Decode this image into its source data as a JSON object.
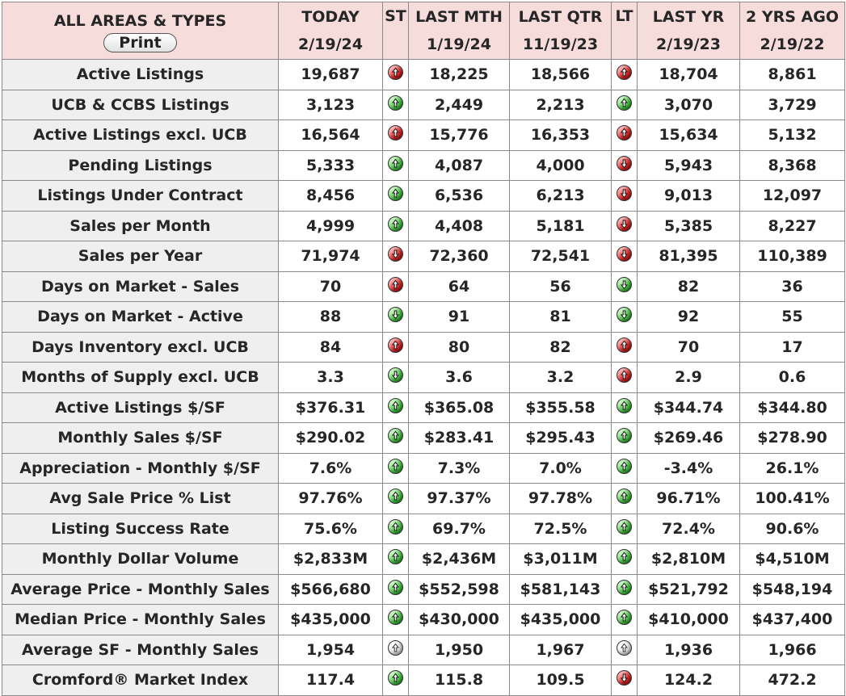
{
  "header": {
    "area_label": "ALL AREAS & TYPES",
    "print_label": "Print",
    "columns": [
      {
        "title": "TODAY",
        "date": "2/19/24"
      },
      {
        "title": "ST",
        "date": ""
      },
      {
        "title": "LAST MTH",
        "date": "1/19/24"
      },
      {
        "title": "LAST QTR",
        "date": "11/19/23"
      },
      {
        "title": "LT",
        "date": ""
      },
      {
        "title": "LAST YR",
        "date": "2/19/23"
      },
      {
        "title": "2 YRS AGO",
        "date": "2/19/22"
      }
    ]
  },
  "rows": [
    {
      "label": "Active Listings",
      "today": "19,687",
      "st": {
        "icon": "arrow-up-icon",
        "color": "red"
      },
      "last_mth": "18,225",
      "last_qtr": "18,566",
      "lt": {
        "icon": "arrow-up-icon",
        "color": "red"
      },
      "last_yr": "18,704",
      "two_yrs": "8,861"
    },
    {
      "label": "UCB & CCBS Listings",
      "today": "3,123",
      "st": {
        "icon": "arrow-up-icon",
        "color": "green"
      },
      "last_mth": "2,449",
      "last_qtr": "2,213",
      "lt": {
        "icon": "arrow-up-icon",
        "color": "green"
      },
      "last_yr": "3,070",
      "two_yrs": "3,729"
    },
    {
      "label": "Active Listings excl. UCB",
      "today": "16,564",
      "st": {
        "icon": "arrow-up-icon",
        "color": "red"
      },
      "last_mth": "15,776",
      "last_qtr": "16,353",
      "lt": {
        "icon": "arrow-up-icon",
        "color": "red"
      },
      "last_yr": "15,634",
      "two_yrs": "5,132"
    },
    {
      "label": "Pending Listings",
      "today": "5,333",
      "st": {
        "icon": "arrow-up-icon",
        "color": "green"
      },
      "last_mth": "4,087",
      "last_qtr": "4,000",
      "lt": {
        "icon": "arrow-down-icon",
        "color": "red"
      },
      "last_yr": "5,943",
      "two_yrs": "8,368"
    },
    {
      "label": "Listings Under Contract",
      "today": "8,456",
      "st": {
        "icon": "arrow-up-icon",
        "color": "green"
      },
      "last_mth": "6,536",
      "last_qtr": "6,213",
      "lt": {
        "icon": "arrow-down-icon",
        "color": "red"
      },
      "last_yr": "9,013",
      "two_yrs": "12,097"
    },
    {
      "label": "Sales per Month",
      "today": "4,999",
      "st": {
        "icon": "arrow-up-icon",
        "color": "green"
      },
      "last_mth": "4,408",
      "last_qtr": "5,181",
      "lt": {
        "icon": "arrow-down-icon",
        "color": "red"
      },
      "last_yr": "5,385",
      "two_yrs": "8,227"
    },
    {
      "label": "Sales per Year",
      "today": "71,974",
      "st": {
        "icon": "arrow-down-icon",
        "color": "red"
      },
      "last_mth": "72,360",
      "last_qtr": "72,541",
      "lt": {
        "icon": "arrow-down-icon",
        "color": "red"
      },
      "last_yr": "81,395",
      "two_yrs": "110,389"
    },
    {
      "label": "Days on Market - Sales",
      "today": "70",
      "st": {
        "icon": "arrow-up-icon",
        "color": "red"
      },
      "last_mth": "64",
      "last_qtr": "56",
      "lt": {
        "icon": "arrow-down-icon",
        "color": "green"
      },
      "last_yr": "82",
      "two_yrs": "36"
    },
    {
      "label": "Days on Market - Active",
      "today": "88",
      "st": {
        "icon": "arrow-down-icon",
        "color": "green"
      },
      "last_mth": "91",
      "last_qtr": "81",
      "lt": {
        "icon": "arrow-down-icon",
        "color": "green"
      },
      "last_yr": "92",
      "two_yrs": "55"
    },
    {
      "label": "Days Inventory excl. UCB",
      "today": "84",
      "st": {
        "icon": "arrow-up-icon",
        "color": "red"
      },
      "last_mth": "80",
      "last_qtr": "82",
      "lt": {
        "icon": "arrow-up-icon",
        "color": "red"
      },
      "last_yr": "70",
      "two_yrs": "17"
    },
    {
      "label": "Months of Supply excl. UCB",
      "today": "3.3",
      "st": {
        "icon": "arrow-down-icon",
        "color": "green"
      },
      "last_mth": "3.6",
      "last_qtr": "3.2",
      "lt": {
        "icon": "arrow-up-icon",
        "color": "red"
      },
      "last_yr": "2.9",
      "two_yrs": "0.6"
    },
    {
      "label": "Active Listings $/SF",
      "today": "$376.31",
      "st": {
        "icon": "arrow-up-icon",
        "color": "green"
      },
      "last_mth": "$365.08",
      "last_qtr": "$355.58",
      "lt": {
        "icon": "arrow-up-icon",
        "color": "green"
      },
      "last_yr": "$344.74",
      "two_yrs": "$344.80"
    },
    {
      "label": "Monthly Sales $/SF",
      "today": "$290.02",
      "st": {
        "icon": "arrow-up-icon",
        "color": "green"
      },
      "last_mth": "$283.41",
      "last_qtr": "$295.43",
      "lt": {
        "icon": "arrow-up-icon",
        "color": "green"
      },
      "last_yr": "$269.46",
      "two_yrs": "$278.90"
    },
    {
      "label": "Appreciation - Monthly $/SF",
      "today": "7.6%",
      "st": {
        "icon": "arrow-up-icon",
        "color": "green"
      },
      "last_mth": "7.3%",
      "last_qtr": "7.0%",
      "lt": {
        "icon": "arrow-up-icon",
        "color": "green"
      },
      "last_yr": "-3.4%",
      "two_yrs": "26.1%"
    },
    {
      "label": "Avg Sale Price % List",
      "today": "97.76%",
      "st": {
        "icon": "arrow-up-icon",
        "color": "green"
      },
      "last_mth": "97.37%",
      "last_qtr": "97.78%",
      "lt": {
        "icon": "arrow-up-icon",
        "color": "green"
      },
      "last_yr": "96.71%",
      "two_yrs": "100.41%"
    },
    {
      "label": "Listing Success Rate",
      "today": "75.6%",
      "st": {
        "icon": "arrow-up-icon",
        "color": "green"
      },
      "last_mth": "69.7%",
      "last_qtr": "72.5%",
      "lt": {
        "icon": "arrow-up-icon",
        "color": "green"
      },
      "last_yr": "72.4%",
      "two_yrs": "90.6%"
    },
    {
      "label": "Monthly Dollar Volume",
      "today": "$2,833M",
      "st": {
        "icon": "arrow-up-icon",
        "color": "green"
      },
      "last_mth": "$2,436M",
      "last_qtr": "$3,011M",
      "lt": {
        "icon": "arrow-up-icon",
        "color": "green"
      },
      "last_yr": "$2,810M",
      "two_yrs": "$4,510M"
    },
    {
      "label": "Average Price - Monthly Sales",
      "today": "$566,680",
      "st": {
        "icon": "arrow-up-icon",
        "color": "green"
      },
      "last_mth": "$552,598",
      "last_qtr": "$581,143",
      "lt": {
        "icon": "arrow-up-icon",
        "color": "green"
      },
      "last_yr": "$521,792",
      "two_yrs": "$548,194"
    },
    {
      "label": "Median Price - Monthly Sales",
      "today": "$435,000",
      "st": {
        "icon": "arrow-up-icon",
        "color": "green"
      },
      "last_mth": "$430,000",
      "last_qtr": "$435,000",
      "lt": {
        "icon": "arrow-up-icon",
        "color": "green"
      },
      "last_yr": "$410,000",
      "two_yrs": "$437,400"
    },
    {
      "label": "Average SF - Monthly Sales",
      "today": "1,954",
      "st": {
        "icon": "arrow-up-icon",
        "color": "white"
      },
      "last_mth": "1,950",
      "last_qtr": "1,967",
      "lt": {
        "icon": "arrow-up-icon",
        "color": "white"
      },
      "last_yr": "1,936",
      "two_yrs": "1,966"
    },
    {
      "label": "Cromford® Market Index",
      "today": "117.4",
      "st": {
        "icon": "arrow-up-icon",
        "color": "green"
      },
      "last_mth": "115.8",
      "last_qtr": "109.5",
      "lt": {
        "icon": "arrow-down-icon",
        "color": "red"
      },
      "last_yr": "124.2",
      "two_yrs": "472.2"
    }
  ],
  "colors": {
    "header_bg": "#f7dcdc",
    "label_bg": "#efefef",
    "red": "#d81c1c",
    "green": "#3cc23a",
    "white": "#e6e6e6"
  }
}
